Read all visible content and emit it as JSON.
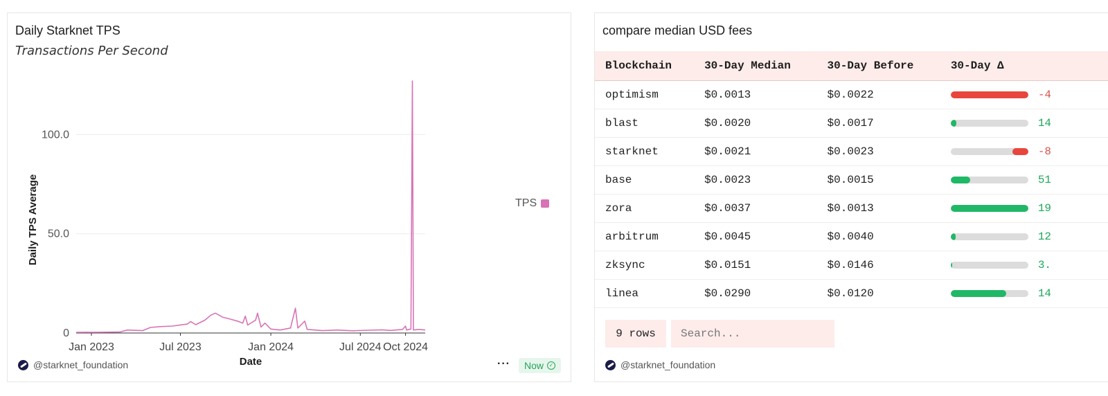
{
  "left": {
    "title": "Daily Starknet TPS",
    "subtitle": "Transactions Per Second",
    "credit": "@starknet_foundation",
    "more_label": "···",
    "now_label": "Now"
  },
  "chart_data": {
    "type": "line",
    "title": "Daily Starknet TPS",
    "subtitle": "Transactions Per Second",
    "xlabel": "Date",
    "ylabel": "Daily TPS Average",
    "x_ticks": [
      "Jan 2023",
      "Jul 2023",
      "Jan 2024",
      "Jul 2024",
      "Oct 2024"
    ],
    "y_ticks": [
      "0",
      "50.0",
      "100.0"
    ],
    "ylim": [
      0,
      128
    ],
    "x_range": [
      "2022-12-01",
      "2024-11-10"
    ],
    "grid": true,
    "legend_position": "right",
    "series": [
      {
        "name": "TPS",
        "color": "#d873b5",
        "points": [
          [
            "2022-12-01",
            0.3
          ],
          [
            "2023-01-15",
            0.4
          ],
          [
            "2023-02-28",
            0.5
          ],
          [
            "2023-03-15",
            1.5
          ],
          [
            "2023-04-15",
            1.2
          ],
          [
            "2023-05-01",
            2.8
          ],
          [
            "2023-05-20",
            3.2
          ],
          [
            "2023-06-15",
            3.5
          ],
          [
            "2023-07-15",
            4.5
          ],
          [
            "2023-07-22",
            5.8
          ],
          [
            "2023-08-01",
            4.2
          ],
          [
            "2023-08-20",
            6.5
          ],
          [
            "2023-09-01",
            9.0
          ],
          [
            "2023-09-10",
            10.0
          ],
          [
            "2023-09-25",
            8.0
          ],
          [
            "2023-10-10",
            7.0
          ],
          [
            "2023-10-25",
            6.0
          ],
          [
            "2023-11-05",
            5.0
          ],
          [
            "2023-11-10",
            8.5
          ],
          [
            "2023-11-15",
            4.0
          ],
          [
            "2023-12-01",
            6.5
          ],
          [
            "2023-12-05",
            10.0
          ],
          [
            "2023-12-12",
            3.0
          ],
          [
            "2023-12-20",
            5.0
          ],
          [
            "2024-01-01",
            2.0
          ],
          [
            "2024-01-20",
            1.5
          ],
          [
            "2024-02-10",
            2.5
          ],
          [
            "2024-02-20",
            12.5
          ],
          [
            "2024-02-25",
            2.5
          ],
          [
            "2024-03-10",
            6.0
          ],
          [
            "2024-03-15",
            1.8
          ],
          [
            "2024-04-15",
            1.2
          ],
          [
            "2024-05-15",
            1.5
          ],
          [
            "2024-06-15",
            1.1
          ],
          [
            "2024-07-15",
            1.4
          ],
          [
            "2024-08-15",
            1.6
          ],
          [
            "2024-09-01",
            1.3
          ],
          [
            "2024-09-25",
            1.8
          ],
          [
            "2024-10-01",
            3.5
          ],
          [
            "2024-10-03",
            1.5
          ],
          [
            "2024-10-12",
            2.0
          ],
          [
            "2024-10-15",
            127.0
          ],
          [
            "2024-10-17",
            1.5
          ],
          [
            "2024-10-28",
            1.8
          ],
          [
            "2024-11-10",
            1.5
          ]
        ]
      }
    ]
  },
  "right": {
    "title": "compare median USD fees",
    "columns": [
      "Blockchain",
      "30-Day Median",
      "30-Day Before",
      "30-Day Δ"
    ],
    "rows": [
      {
        "chain": "optimism",
        "median": "$0.0013",
        "before": "$0.0022",
        "delta": "-4",
        "delta_color": "#d9534f",
        "bar_color": "#e8453c",
        "bar_from": 0,
        "bar_to": 1.0
      },
      {
        "chain": "blast",
        "median": "$0.0020",
        "before": "$0.0017",
        "delta": "14",
        "delta_color": "#1fa85a",
        "bar_color": "#20b866",
        "bar_from": 0,
        "bar_to": 0.07
      },
      {
        "chain": "starknet",
        "median": "$0.0021",
        "before": "$0.0023",
        "delta": "-8",
        "delta_color": "#d9534f",
        "bar_color": "#e8453c",
        "bar_from": 0.8,
        "bar_to": 1.0
      },
      {
        "chain": "base",
        "median": "$0.0023",
        "before": "$0.0015",
        "delta": "51",
        "delta_color": "#1fa85a",
        "bar_color": "#20b866",
        "bar_from": 0,
        "bar_to": 0.25
      },
      {
        "chain": "zora",
        "median": "$0.0037",
        "before": "$0.0013",
        "delta": "19",
        "delta_color": "#1fa85a",
        "bar_color": "#20b866",
        "bar_from": 0,
        "bar_to": 1.0
      },
      {
        "chain": "arbitrum",
        "median": "$0.0045",
        "before": "$0.0040",
        "delta": "12",
        "delta_color": "#1fa85a",
        "bar_color": "#20b866",
        "bar_from": 0,
        "bar_to": 0.06
      },
      {
        "chain": "zksync",
        "median": "$0.0151",
        "before": "$0.0146",
        "delta": "3.",
        "delta_color": "#1fa85a",
        "bar_color": "#20b866",
        "bar_from": 0,
        "bar_to": 0.015
      },
      {
        "chain": "linea",
        "median": "$0.0290",
        "before": "$0.0120",
        "delta": "14",
        "delta_color": "#1fa85a",
        "bar_color": "#20b866",
        "bar_from": 0,
        "bar_to": 0.72
      }
    ],
    "rows_label": "9 rows",
    "search_placeholder": "Search...",
    "credit": "@starknet_foundation"
  }
}
